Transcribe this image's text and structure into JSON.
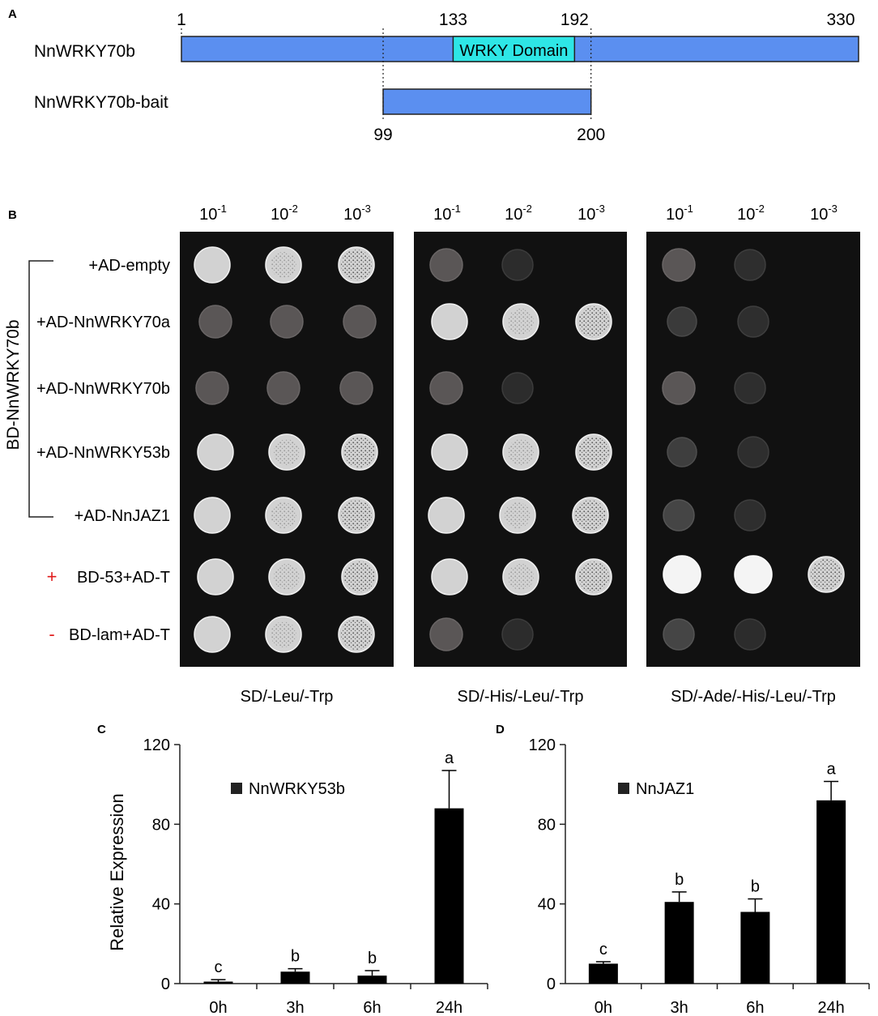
{
  "panel_a": {
    "letter": "A",
    "protein_label": "NnWRKY70b",
    "bait_label": "NnWRKY70b-bait",
    "domain_label": "WRKY Domain",
    "length": 330,
    "domain_start": 133,
    "domain_end": 192,
    "bait_start": 99,
    "bait_end": 200,
    "ticks_top": [
      "1",
      "133",
      "192",
      "330"
    ],
    "ticks_bottom": [
      "99",
      "200"
    ],
    "colors": {
      "bar": "#5b8ff0",
      "domain": "#2ee6e6"
    }
  },
  "panel_b": {
    "letter": "B",
    "group_label": "BD-NnWRKY70b",
    "dilutions": [
      "-1",
      "-2",
      "-3"
    ],
    "dilution_base": "10",
    "plates": [
      "SD/-Leu/-Trp",
      "SD/-His/-Leu/-Trp",
      "SD/-Ade/-His/-Leu/-Trp"
    ],
    "rows": [
      {
        "label": "+AD-empty",
        "marker": ""
      },
      {
        "label": "+AD-NnWRKY70a",
        "marker": ""
      },
      {
        "label": "+AD-NnWRKY70b",
        "marker": ""
      },
      {
        "label": "+AD-NnWRKY53b",
        "marker": ""
      },
      {
        "label": "+AD-NnJAZ1",
        "marker": ""
      },
      {
        "label": "BD-53+AD-T",
        "marker": "+"
      },
      {
        "label": "BD-lam+AD-T",
        "marker": "-"
      }
    ],
    "growth": [
      [
        [
          3,
          3,
          3
        ],
        [
          1,
          1,
          1
        ],
        [
          1,
          1,
          1
        ],
        [
          3,
          3,
          3
        ],
        [
          3,
          3,
          3
        ],
        [
          3,
          3,
          3
        ],
        [
          3,
          3,
          3
        ]
      ],
      [
        [
          1,
          0.4,
          0
        ],
        [
          3,
          3,
          3
        ],
        [
          1,
          0.4,
          0
        ],
        [
          3,
          3,
          3
        ],
        [
          3,
          3,
          3
        ],
        [
          3,
          3,
          3
        ],
        [
          1,
          0.4,
          0
        ]
      ],
      [
        [
          1,
          0.5,
          0
        ],
        [
          0.6,
          0.5,
          0
        ],
        [
          1,
          0.5,
          0
        ],
        [
          0.7,
          0.5,
          0
        ],
        [
          0.8,
          0.5,
          0
        ],
        [
          4,
          4,
          3
        ],
        [
          0.8,
          0.4,
          0
        ]
      ]
    ],
    "marker_color": "#e01b1b"
  },
  "chart_data": [
    {
      "letter": "C",
      "type": "bar",
      "ylabel": "Relative Expression",
      "legend": "NnWRKY53b",
      "categories": [
        "0h",
        "3h",
        "6h",
        "24h"
      ],
      "values": [
        1,
        6,
        4,
        88
      ],
      "errors": [
        1,
        1.5,
        2.5,
        19
      ],
      "significance": [
        "c",
        "b",
        "b",
        "a"
      ],
      "ylim": [
        0,
        120
      ],
      "yticks": [
        "0",
        "40",
        "80",
        "120"
      ]
    },
    {
      "letter": "D",
      "type": "bar",
      "ylabel": "",
      "legend": "NnJAZ1",
      "categories": [
        "0h",
        "3h",
        "6h",
        "24h"
      ],
      "values": [
        10,
        41,
        36,
        92
      ],
      "errors": [
        1,
        5,
        6.5,
        9.5
      ],
      "significance": [
        "c",
        "b",
        "b",
        "a"
      ],
      "ylim": [
        0,
        120
      ],
      "yticks": [
        "0",
        "40",
        "80",
        "120"
      ]
    }
  ]
}
